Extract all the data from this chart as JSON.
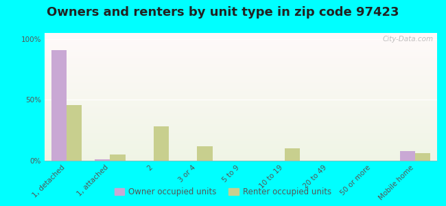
{
  "title": "Owners and renters by unit type in zip code 97423",
  "categories": [
    "1, detached",
    "1, attached",
    "2",
    "3 or 4",
    "5 to 9",
    "10 to 19",
    "20 to 49",
    "50 or more",
    "Mobile home"
  ],
  "owner_values": [
    91,
    1,
    0,
    0,
    0,
    0,
    0,
    0,
    8
  ],
  "renter_values": [
    46,
    5,
    28,
    12,
    0,
    10,
    0,
    0,
    6
  ],
  "owner_color": "#c9a8d4",
  "renter_color": "#c8cf8e",
  "background_color": "#00ffff",
  "yticks": [
    0,
    50,
    100
  ],
  "ylim": [
    0,
    105
  ],
  "bar_width": 0.35,
  "title_fontsize": 13,
  "tick_fontsize": 7.5,
  "legend_labels": [
    "Owner occupied units",
    "Renter occupied units"
  ],
  "watermark": "City-Data.com"
}
